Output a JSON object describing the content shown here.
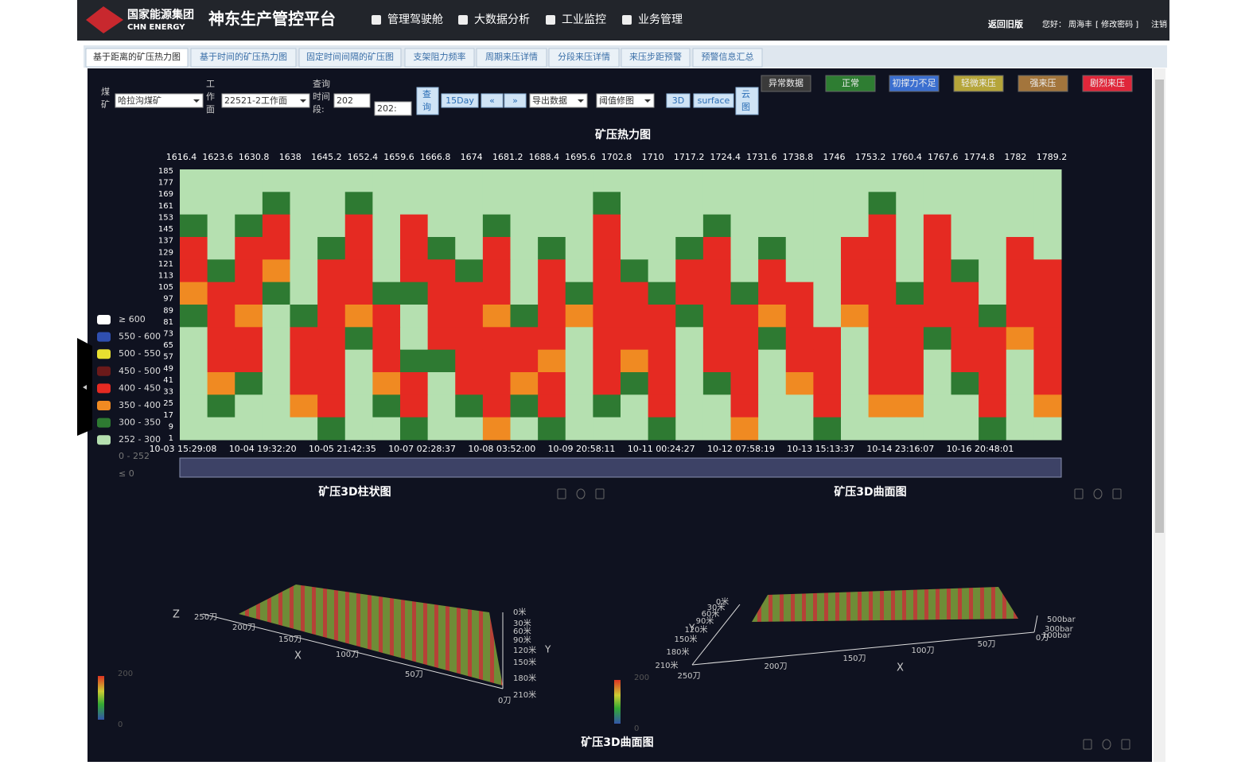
{
  "header": {
    "logo_cn": "国家能源集团",
    "logo_en": "CHN ENERGY",
    "title": "神东生产管控平台",
    "nav": [
      "管理驾驶舱",
      "大数据分析",
      "工业监控",
      "业务管理"
    ],
    "back": "返回旧版",
    "greeting": "您好：",
    "user": "周海丰",
    "change_password": "[ 修改密码 ]",
    "logout": "注销"
  },
  "tabs": [
    "基于距离的矿压热力图",
    "基于时间的矿压热力图",
    "固定时间间隔的矿压图",
    "支架阻力频率",
    "周期来压详情",
    "分段来压详情",
    "来压步距预警",
    "预警信息汇总"
  ],
  "filters": {
    "mine_label": "煤矿",
    "mine": "哈拉沟煤矿",
    "face_label": "工作面",
    "face": "22521-2工作面",
    "period_label": "查询时间段:",
    "start": "202",
    "end": "202:"
  },
  "buttons": [
    "查询",
    "15Day",
    "«",
    "»",
    "导出数据",
    "阈值修图",
    "3D",
    "surface",
    "云图"
  ],
  "status_legend": [
    {
      "label": "异常数据",
      "color": "#3a3a3a"
    },
    {
      "label": "正常",
      "color": "#2e7d32"
    },
    {
      "label": "初撑力不足",
      "color": "#3b6fd0"
    },
    {
      "label": "轻微来压",
      "color": "#b5a53a"
    },
    {
      "label": "强来压",
      "color": "#a3753c"
    },
    {
      "label": "剧烈来压",
      "color": "#e0263a"
    }
  ],
  "chart_data": {
    "type": "heatmap",
    "title": "矿压热力图",
    "x_top_ticks": [
      1616.4,
      1623.6,
      1630.8,
      1638,
      1645.2,
      1652.4,
      1659.6,
      1666.8,
      1674,
      1681.2,
      1688.4,
      1695.6,
      1702.8,
      1710,
      1717.2,
      1724.4,
      1731.6,
      1738.8,
      1746,
      1753.2,
      1760.4,
      1767.6,
      1774.8,
      1782,
      1789.2
    ],
    "yticks": [
      185,
      177,
      169,
      161,
      153,
      145,
      137,
      129,
      121,
      113,
      105,
      97,
      89,
      81,
      73,
      65,
      57,
      49,
      41,
      33,
      25,
      17,
      9,
      1
    ],
    "x_bottom_labels": [
      "10-03 15:29:08",
      "10-04 19:32:20",
      "10-05 21:42:35",
      "10-07 02:28:37",
      "10-08 03:52:00",
      "10-09 20:58:11",
      "10-11 00:24:27",
      "10-12 07:58:19",
      "10-13 15:13:37",
      "10-14 23:16:07",
      "10-16 20:48:01"
    ],
    "legend": [
      {
        "label": "≥ 600",
        "color": "#ffffff",
        "from": 600
      },
      {
        "label": "550 - 600",
        "color": "#2f4fb0",
        "from": 550
      },
      {
        "label": "500 - 550",
        "color": "#e8e030",
        "from": 500
      },
      {
        "label": "450 - 500",
        "color": "#6b1a1a",
        "from": 450
      },
      {
        "label": "400 - 450",
        "color": "#e52a22",
        "from": 400
      },
      {
        "label": "350 - 400",
        "color": "#f08a22",
        "from": 350
      },
      {
        "label": "300 - 350",
        "color": "#2e7a32",
        "from": 300
      },
      {
        "label": "252 - 300",
        "color": "#b5e0b0",
        "from": 252
      }
    ],
    "inactive_legend": [
      "0 - 252",
      "≤ 0"
    ],
    "grid": [
      [
        270,
        270,
        270,
        270,
        270,
        270,
        270,
        270,
        270,
        270,
        270,
        270,
        270,
        270,
        270,
        270,
        270,
        270,
        270,
        270,
        270,
        270,
        270,
        270,
        270,
        270,
        270,
        270,
        270,
        270,
        270,
        270
      ],
      [
        270,
        270,
        270,
        320,
        270,
        270,
        320,
        270,
        270,
        270,
        270,
        270,
        270,
        270,
        270,
        320,
        270,
        270,
        270,
        270,
        270,
        270,
        270,
        270,
        270,
        320,
        270,
        270,
        270,
        270,
        270,
        270
      ],
      [
        320,
        270,
        320,
        420,
        270,
        270,
        420,
        270,
        420,
        270,
        270,
        320,
        270,
        270,
        270,
        420,
        270,
        270,
        270,
        320,
        270,
        270,
        270,
        270,
        270,
        420,
        270,
        420,
        270,
        270,
        270,
        270
      ],
      [
        420,
        270,
        420,
        420,
        270,
        320,
        420,
        270,
        420,
        320,
        270,
        420,
        270,
        320,
        270,
        420,
        270,
        270,
        320,
        420,
        270,
        320,
        270,
        270,
        420,
        420,
        270,
        420,
        270,
        270,
        420,
        270
      ],
      [
        420,
        320,
        420,
        370,
        270,
        420,
        420,
        270,
        420,
        420,
        320,
        420,
        270,
        420,
        270,
        420,
        320,
        270,
        420,
        420,
        270,
        420,
        270,
        270,
        420,
        420,
        270,
        420,
        320,
        270,
        420,
        420
      ],
      [
        370,
        420,
        420,
        320,
        270,
        420,
        420,
        320,
        320,
        420,
        420,
        420,
        270,
        420,
        320,
        420,
        420,
        320,
        420,
        420,
        320,
        420,
        420,
        270,
        420,
        420,
        320,
        420,
        420,
        270,
        420,
        420
      ],
      [
        320,
        420,
        370,
        270,
        320,
        420,
        370,
        420,
        270,
        420,
        420,
        370,
        320,
        420,
        370,
        420,
        420,
        420,
        320,
        420,
        420,
        370,
        420,
        270,
        370,
        420,
        420,
        420,
        420,
        320,
        420,
        420
      ],
      [
        270,
        420,
        420,
        270,
        420,
        420,
        320,
        420,
        270,
        420,
        420,
        420,
        420,
        420,
        270,
        420,
        420,
        420,
        270,
        420,
        420,
        320,
        420,
        420,
        270,
        420,
        420,
        320,
        420,
        420,
        370,
        420
      ],
      [
        270,
        420,
        420,
        270,
        420,
        420,
        270,
        420,
        320,
        320,
        420,
        420,
        420,
        370,
        270,
        420,
        370,
        420,
        270,
        420,
        420,
        270,
        420,
        420,
        270,
        420,
        420,
        270,
        420,
        420,
        270,
        420
      ],
      [
        270,
        370,
        320,
        270,
        420,
        420,
        270,
        370,
        420,
        270,
        420,
        420,
        370,
        420,
        270,
        420,
        320,
        420,
        270,
        320,
        420,
        270,
        370,
        420,
        270,
        420,
        420,
        270,
        320,
        420,
        270,
        420
      ],
      [
        270,
        320,
        270,
        270,
        370,
        420,
        270,
        320,
        420,
        270,
        320,
        420,
        320,
        420,
        270,
        320,
        270,
        420,
        270,
        270,
        420,
        270,
        270,
        420,
        270,
        370,
        370,
        270,
        270,
        420,
        270,
        370
      ],
      [
        270,
        270,
        270,
        270,
        270,
        320,
        270,
        270,
        320,
        270,
        270,
        370,
        270,
        320,
        270,
        270,
        270,
        320,
        270,
        270,
        370,
        270,
        270,
        320,
        270,
        270,
        270,
        270,
        270,
        320,
        270,
        270
      ]
    ]
  },
  "bar3d": {
    "title": "矿压3D柱状图",
    "z_label": "Z",
    "x_label": "X",
    "y_label": "Y",
    "x_ticks": [
      "250刀",
      "200刀",
      "150刀",
      "100刀",
      "50刀",
      "0刀"
    ],
    "y_ticks": [
      "0米",
      "30米",
      "60米",
      "90米",
      "120米",
      "150米",
      "180米",
      "210米"
    ],
    "colorbar": [
      200,
      0
    ]
  },
  "surface3d": {
    "title": "矿压3D曲面图",
    "x_label": "X",
    "y_label": "Y",
    "x_ticks": [
      "250刀",
      "200刀",
      "150刀",
      "100刀",
      "50刀",
      "0刀"
    ],
    "y_ticks": [
      "0米",
      "30米",
      "60米",
      "90米",
      "120米",
      "150米",
      "180米",
      "210米"
    ],
    "z_ticks": [
      "500bar",
      "300bar",
      "100bar"
    ],
    "colorbar": [
      200,
      0
    ]
  },
  "surface3d_b": {
    "title": "矿压3D曲面图"
  }
}
